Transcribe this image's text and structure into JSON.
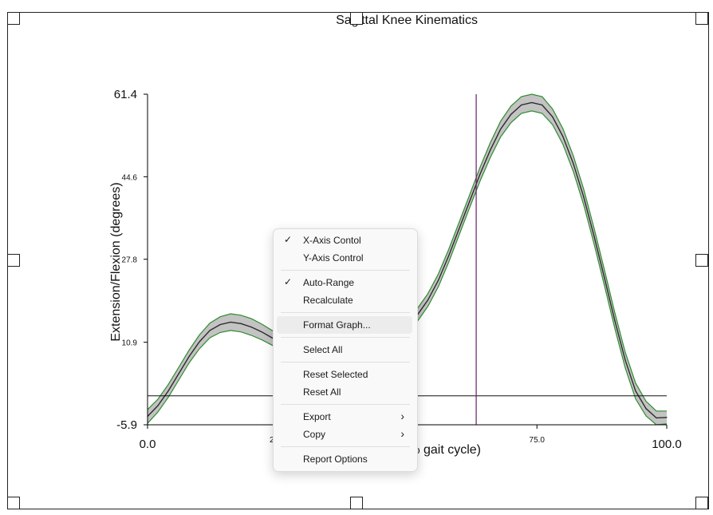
{
  "chart_data": {
    "type": "line",
    "title": "Sagittal Knee Kinematics",
    "xlabel": "(% gait cycle)",
    "ylabel": "Extension/Flexion (degrees)",
    "xlim": [
      0,
      100
    ],
    "ylim": [
      -5.9,
      61.4
    ],
    "y_ticks": [
      "61.4",
      "44.6",
      "27.8",
      "10.9",
      "-5.9"
    ],
    "x_ticks": [
      "0.0",
      "25.0",
      "75.0",
      "100.0"
    ],
    "cursor_x": 63.3,
    "reference_y": 0,
    "series": [
      {
        "x": [
          0,
          2,
          4,
          6,
          8,
          10,
          12,
          14,
          16,
          18,
          20,
          22,
          24,
          26,
          28,
          30,
          32,
          34,
          36,
          38,
          40,
          42,
          44,
          46,
          48,
          50,
          52,
          54,
          56,
          58,
          60,
          62,
          64,
          66,
          68,
          70,
          72,
          74,
          76,
          78,
          80,
          82,
          84,
          86,
          88,
          90,
          92,
          94,
          96,
          98,
          100
        ],
        "values": [
          -4.2,
          -2.0,
          1.0,
          4.5,
          8.0,
          11.0,
          13.3,
          14.5,
          15.0,
          14.7,
          14.0,
          13.0,
          11.8,
          10.6,
          9.6,
          8.8,
          8.2,
          8.0,
          8.1,
          8.5,
          9.2,
          10.2,
          11.2,
          12.3,
          13.3,
          14.5,
          16.5,
          19.5,
          23.5,
          28.5,
          34.0,
          39.5,
          45.0,
          50.0,
          54.3,
          57.3,
          59.2,
          59.7,
          59.2,
          56.8,
          52.8,
          47.3,
          40.5,
          32.5,
          24.0,
          15.3,
          7.3,
          1.0,
          -2.6,
          -4.5,
          -4.4
        ],
        "band": [
          1.4,
          1.3,
          1.3,
          1.3,
          1.3,
          1.4,
          1.5,
          1.6,
          1.7,
          1.7,
          1.7,
          1.6,
          1.5,
          1.5,
          1.4,
          1.4,
          1.4,
          1.4,
          1.4,
          1.4,
          1.4,
          1.4,
          1.4,
          1.4,
          1.3,
          1.3,
          1.3,
          1.3,
          1.3,
          1.3,
          1.3,
          1.3,
          1.4,
          1.5,
          1.6,
          1.7,
          1.7,
          1.7,
          1.7,
          1.6,
          1.6,
          1.6,
          1.6,
          1.6,
          1.6,
          1.6,
          1.6,
          1.6,
          1.5,
          1.4,
          1.3
        ]
      }
    ],
    "colors": {
      "mean_line": "#2b2b2b",
      "band_fill": "#b8b8b8",
      "band_edge": "#2e8b2e",
      "cursor": "#6a1b6a",
      "axis": "#000000"
    }
  },
  "context_menu": {
    "items": [
      {
        "label": "X-Axis Contol",
        "checked": true
      },
      {
        "label": "Y-Axis Control",
        "checked": false
      },
      {
        "label": "Auto-Range",
        "checked": true
      },
      {
        "label": "Recalculate",
        "checked": false
      },
      {
        "label": "Format Graph...",
        "checked": false,
        "hovered": true
      },
      {
        "label": "Select All",
        "checked": false
      },
      {
        "label": "Reset Selected",
        "checked": false
      },
      {
        "label": "Reset All",
        "checked": false
      },
      {
        "label": "Export",
        "checked": false,
        "submenu": true
      },
      {
        "label": "Copy",
        "checked": false,
        "submenu": true
      },
      {
        "label": "Report Options",
        "checked": false
      }
    ]
  }
}
